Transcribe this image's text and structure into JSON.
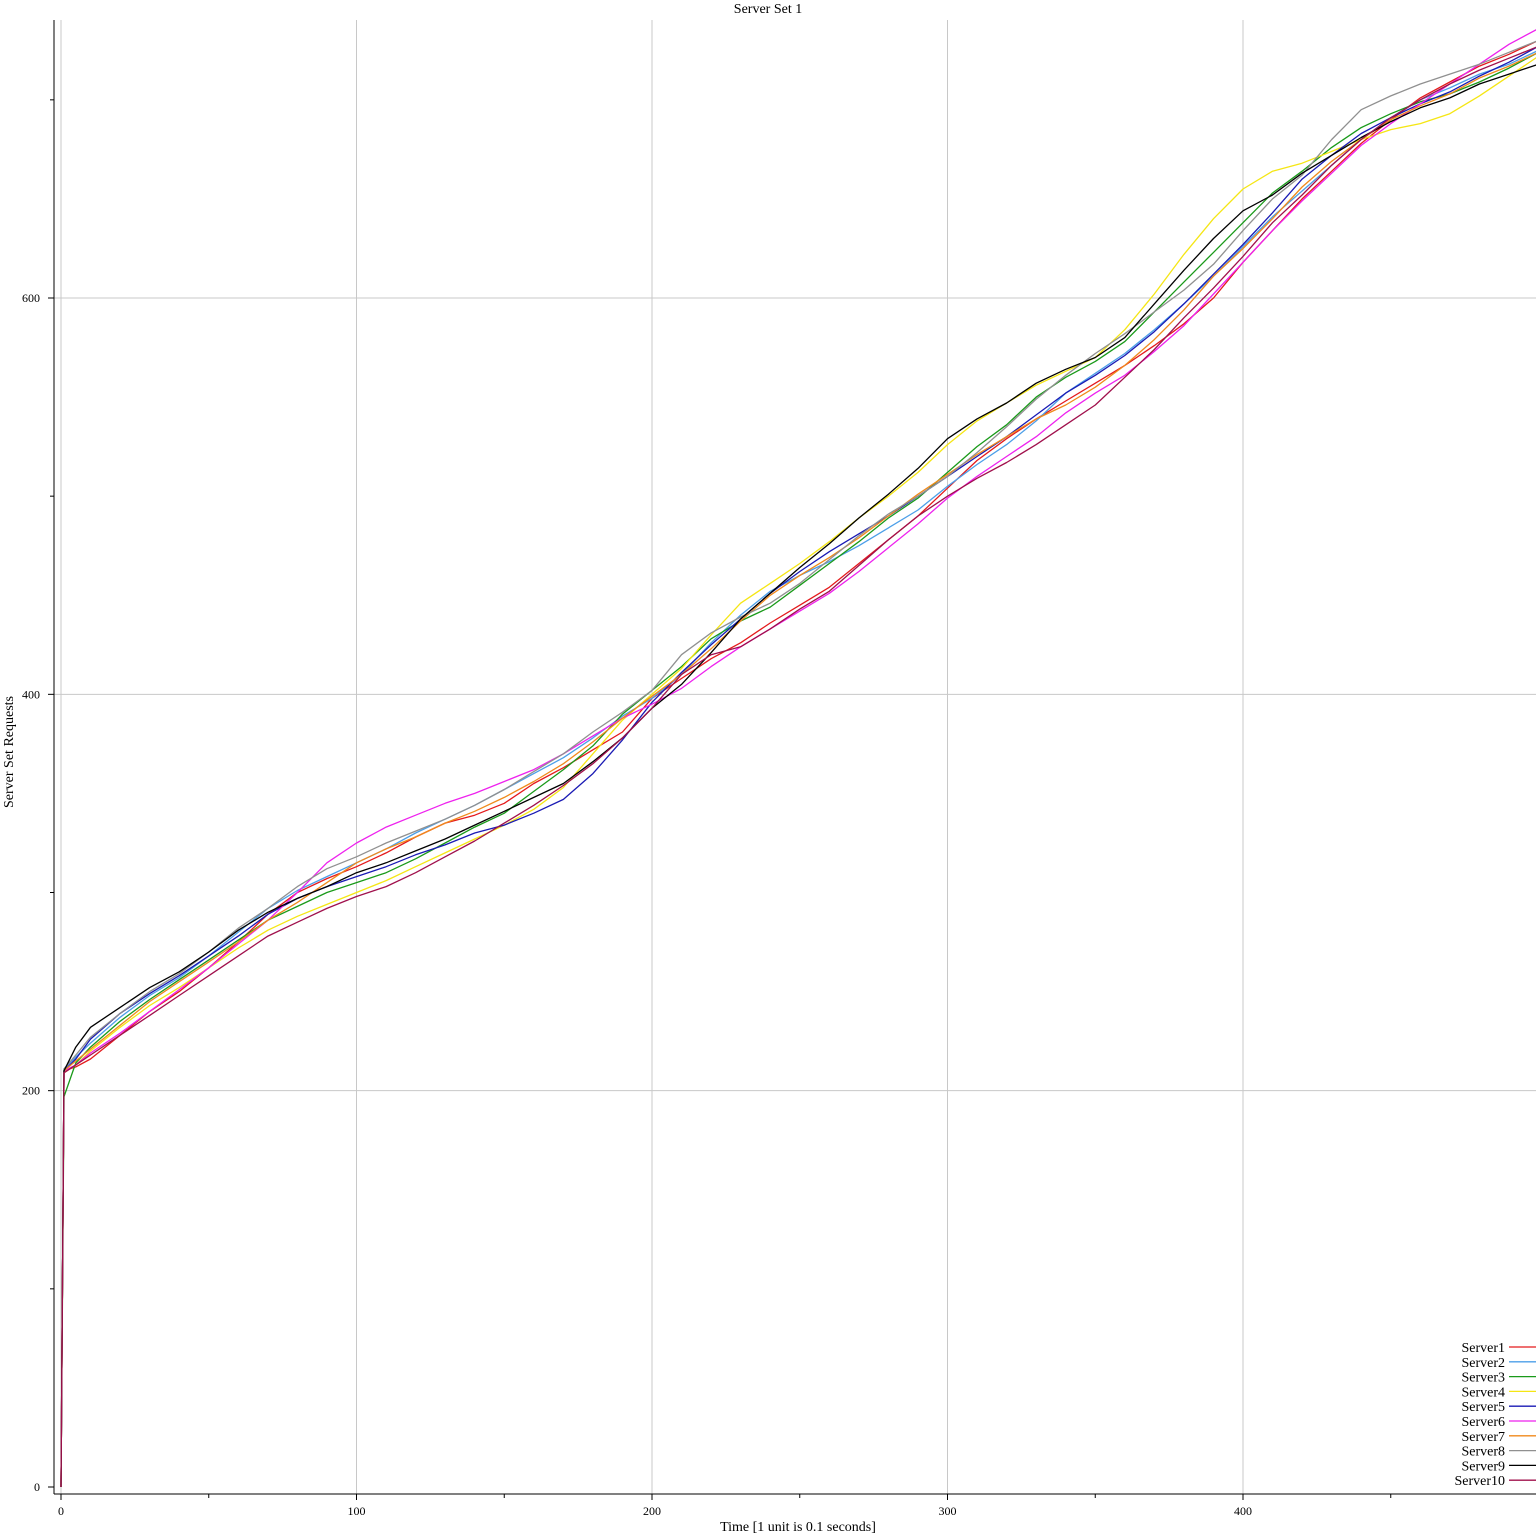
{
  "chart_data": {
    "type": "line",
    "title": "Server Set 1",
    "xlabel": "Time [1 unit is 0.1 seconds]",
    "ylabel": "Server Set Requests",
    "xlim": [
      0,
      500
    ],
    "ylim": [
      0,
      740
    ],
    "x_ticks": [
      0,
      100,
      200,
      300,
      400
    ],
    "x_minor_ticks": [
      50,
      150,
      250,
      350,
      450
    ],
    "y_ticks": [
      0,
      200,
      400,
      600
    ],
    "y_minor_ticks": [
      100,
      300,
      500,
      700
    ],
    "grid": true,
    "legend_position": "bottom-right",
    "x": [
      0,
      1,
      5,
      10,
      20,
      30,
      40,
      50,
      60,
      70,
      80,
      90,
      100,
      110,
      120,
      130,
      140,
      150,
      160,
      170,
      180,
      190,
      200,
      210,
      220,
      230,
      240,
      250,
      260,
      270,
      280,
      290,
      300,
      310,
      320,
      330,
      340,
      350,
      360,
      370,
      380,
      390,
      400,
      410,
      420,
      430,
      440,
      450,
      460,
      470,
      480,
      490,
      500
    ],
    "series": [
      {
        "name": "Server1",
        "color": "#e41a1c",
        "values": [
          0,
          210,
          212,
          216,
          228,
          240,
          250,
          262,
          275,
          289,
          300,
          307,
          313,
          320,
          328,
          335,
          339,
          345,
          355,
          363,
          372,
          381,
          398,
          408,
          418,
          426,
          436,
          445,
          454,
          466,
          478,
          490,
          504,
          518,
          529,
          539,
          548,
          557,
          566,
          576,
          587,
          600,
          618,
          634,
          650,
          664,
          678,
          690,
          701,
          709,
          717,
          723,
          730
        ]
      },
      {
        "name": "Server2",
        "color": "#4c9fe8",
        "values": [
          0,
          211,
          217,
          224,
          237,
          248,
          257,
          268,
          280,
          292,
          301,
          308,
          315,
          322,
          330,
          337,
          344,
          352,
          360,
          368,
          378,
          389,
          398,
          410,
          426,
          440,
          452,
          460,
          467,
          475,
          484,
          493,
          505,
          516,
          526,
          538,
          552,
          562,
          572,
          584,
          597,
          611,
          626,
          641,
          654,
          667,
          680,
          691,
          700,
          706,
          713,
          718,
          725
        ]
      },
      {
        "name": "Server3",
        "color": "#1a9a1a",
        "values": [
          0,
          197,
          214,
          222,
          235,
          246,
          256,
          266,
          276,
          286,
          293,
          300,
          305,
          310,
          317,
          325,
          333,
          340,
          351,
          362,
          374,
          390,
          402,
          414,
          428,
          437,
          444,
          455,
          466,
          477,
          489,
          499,
          512,
          525,
          536,
          550,
          560,
          568,
          578,
          593,
          608,
          623,
          638,
          653,
          664,
          676,
          686,
          693,
          699,
          703,
          709,
          716,
          724
        ]
      },
      {
        "name": "Server4",
        "color": "#f5e614",
        "values": [
          0,
          209,
          213,
          220,
          232,
          243,
          252,
          262,
          272,
          281,
          288,
          294,
          300,
          306,
          313,
          320,
          327,
          334,
          342,
          353,
          370,
          387,
          400,
          413,
          430,
          446,
          456,
          466,
          477,
          489,
          500,
          512,
          526,
          538,
          547,
          556,
          563,
          570,
          584,
          602,
          622,
          640,
          655,
          664,
          668,
          674,
          680,
          685,
          688,
          693,
          702,
          712,
          722
        ]
      },
      {
        "name": "Server5",
        "color": "#1a1ab4",
        "values": [
          0,
          210,
          216,
          226,
          239,
          249,
          258,
          268,
          278,
          289,
          297,
          303,
          308,
          313,
          319,
          324,
          330,
          334,
          340,
          347,
          360,
          377,
          396,
          411,
          425,
          438,
          451,
          462,
          472,
          481,
          490,
          500,
          510,
          520,
          530,
          541,
          552,
          561,
          571,
          583,
          597,
          612,
          627,
          643,
          660,
          672,
          683,
          691,
          698,
          704,
          712,
          719,
          727
        ]
      },
      {
        "name": "Server6",
        "color": "#ee22ee",
        "values": [
          0,
          210,
          213,
          219,
          229,
          240,
          251,
          262,
          274,
          286,
          300,
          315,
          325,
          333,
          339,
          345,
          350,
          356,
          362,
          370,
          379,
          388,
          395,
          403,
          414,
          424,
          433,
          442,
          451,
          462,
          474,
          486,
          499,
          510,
          520,
          530,
          542,
          552,
          561,
          573,
          586,
          602,
          618,
          634,
          649,
          663,
          677,
          688,
          698,
          708,
          718,
          728,
          736
        ]
      },
      {
        "name": "Server7",
        "color": "#f08a1c",
        "values": [
          0,
          210,
          215,
          221,
          233,
          245,
          255,
          265,
          275,
          286,
          295,
          305,
          315,
          322,
          328,
          335,
          341,
          348,
          356,
          365,
          376,
          388,
          399,
          410,
          423,
          437,
          450,
          460,
          469,
          479,
          490,
          501,
          511,
          521,
          530,
          539,
          546,
          555,
          566,
          579,
          594,
          611,
          625,
          640,
          656,
          669,
          680,
          690,
          697,
          703,
          711,
          717,
          724
        ]
      },
      {
        "name": "Server8",
        "color": "#909090",
        "values": [
          0,
          211,
          218,
          227,
          239,
          250,
          259,
          270,
          282,
          292,
          303,
          312,
          318,
          325,
          331,
          337,
          344,
          352,
          361,
          370,
          381,
          391,
          402,
          420,
          431,
          439,
          446,
          456,
          468,
          480,
          491,
          500,
          510,
          522,
          535,
          549,
          561,
          572,
          582,
          593,
          604,
          617,
          634,
          650,
          662,
          680,
          695,
          702,
          708,
          713,
          718,
          724,
          730
        ]
      },
      {
        "name": "Server9",
        "color": "#000000",
        "values": [
          0,
          210,
          222,
          232,
          242,
          252,
          260,
          270,
          281,
          290,
          297,
          303,
          310,
          315,
          321,
          327,
          334,
          341,
          348,
          355,
          366,
          378,
          393,
          405,
          421,
          438,
          451,
          464,
          476,
          489,
          501,
          514,
          529,
          539,
          547,
          557,
          564,
          570,
          580,
          597,
          614,
          630,
          644,
          652,
          663,
          672,
          681,
          689,
          696,
          701,
          708,
          713,
          718
        ]
      },
      {
        "name": "Server10",
        "color": "#a0104c",
        "values": [
          0,
          209,
          213,
          218,
          228,
          238,
          248,
          258,
          268,
          278,
          285,
          292,
          298,
          303,
          310,
          318,
          326,
          335,
          344,
          354,
          365,
          378,
          393,
          410,
          420,
          424,
          433,
          443,
          452,
          465,
          478,
          490,
          500,
          509,
          517,
          526,
          536,
          546,
          560,
          574,
          590,
          605,
          621,
          638,
          652,
          667,
          680,
          691,
          700,
          708,
          715,
          721,
          727
        ]
      }
    ]
  }
}
